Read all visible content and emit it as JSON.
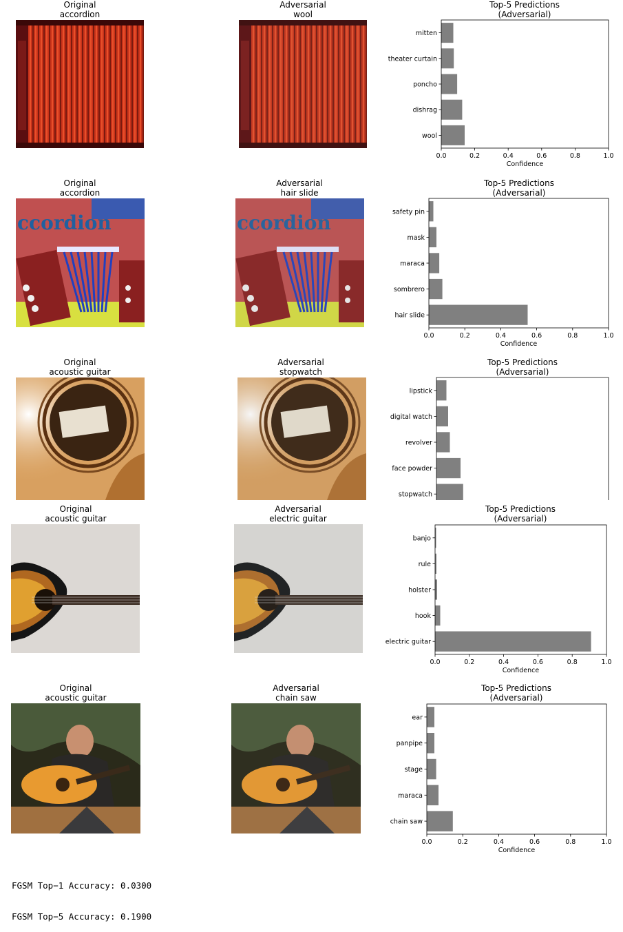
{
  "rows": [
    {
      "original_title": "Original",
      "original_label": "accordion",
      "adv_title": "Adversarial",
      "adv_label": "wool",
      "image_name": "accordion-bellows-image",
      "chart_title_1": "Top-5 Predictions",
      "chart_title_2": "(Adversarial)"
    },
    {
      "original_title": "Original",
      "original_label": "accordion",
      "adv_title": "Adversarial",
      "adv_label": "hair slide",
      "image_name": "accordion-book-cover-image",
      "chart_title_1": "Top-5 Predictions",
      "chart_title_2": "(Adversarial)"
    },
    {
      "original_title": "Original",
      "original_label": "acoustic guitar",
      "adv_title": "Adversarial",
      "adv_label": "stopwatch",
      "image_name": "guitar-soundhole-image",
      "chart_title_1": "Top-5 Predictions",
      "chart_title_2": "(Adversarial)"
    },
    {
      "original_title": "Original",
      "original_label": "acoustic guitar",
      "adv_title": "Adversarial",
      "adv_label": "electric guitar",
      "image_name": "guitar-on-fabric-image",
      "chart_title_1": "Top-5 Predictions",
      "chart_title_2": "(Adversarial)"
    },
    {
      "original_title": "Original",
      "original_label": "acoustic guitar",
      "adv_title": "Adversarial",
      "adv_label": "chain saw",
      "image_name": "man-playing-guitar-image",
      "chart_title_1": "Top-5 Predictions",
      "chart_title_2": "(Adversarial)"
    }
  ],
  "chart_data": [
    {
      "type": "bar",
      "orientation": "horizontal",
      "title": "Top-5 Predictions (Adversarial)",
      "categories": [
        "wool",
        "dishrag",
        "poncho",
        "theater curtain",
        "mitten"
      ],
      "values": [
        0.14,
        0.125,
        0.095,
        0.075,
        0.072
      ],
      "xlabel": "Confidence",
      "xlim": [
        0,
        1.0
      ],
      "xticks": [
        "0.0",
        "0.2",
        "0.4",
        "0.6",
        "0.8",
        "1.0"
      ],
      "bar_color": "#808080",
      "show_xaxis": true
    },
    {
      "type": "bar",
      "orientation": "horizontal",
      "title": "Top-5 Predictions (Adversarial)",
      "categories": [
        "hair slide",
        "sombrero",
        "maraca",
        "mask",
        "safety pin"
      ],
      "values": [
        0.55,
        0.075,
        0.058,
        0.042,
        0.025
      ],
      "xlabel": "Confidence",
      "xlim": [
        0,
        1.0
      ],
      "xticks": [
        "0.0",
        "0.2",
        "0.4",
        "0.6",
        "0.8",
        "1.0"
      ],
      "bar_color": "#808080",
      "show_xaxis": true
    },
    {
      "type": "bar",
      "orientation": "horizontal",
      "title": "Top-5 Predictions (Adversarial)",
      "categories": [
        "stopwatch",
        "face powder",
        "revolver",
        "digital watch",
        "lipstick"
      ],
      "values": [
        0.155,
        0.14,
        0.078,
        0.068,
        0.058
      ],
      "xlabel": "",
      "xlim": [
        0,
        1.0
      ],
      "xticks": [],
      "bar_color": "#808080",
      "show_xaxis": false
    },
    {
      "type": "bar",
      "orientation": "horizontal",
      "title": "Top-5 Predictions (Adversarial)",
      "categories": [
        "electric guitar",
        "hook",
        "holster",
        "rule",
        "banjo"
      ],
      "values": [
        0.91,
        0.03,
        0.012,
        0.008,
        0.006
      ],
      "xlabel": "Confidence",
      "xlim": [
        0,
        1.0
      ],
      "xticks": [
        "0.0",
        "0.2",
        "0.4",
        "0.6",
        "0.8",
        "1.0"
      ],
      "bar_color": "#808080",
      "show_xaxis": true
    },
    {
      "type": "bar",
      "orientation": "horizontal",
      "title": "Top-5 Predictions (Adversarial)",
      "categories": [
        "chain saw",
        "maraca",
        "stage",
        "panpipe",
        "ear"
      ],
      "values": [
        0.145,
        0.065,
        0.052,
        0.042,
        0.042
      ],
      "xlabel": "Confidence",
      "xlim": [
        0,
        1.0
      ],
      "xticks": [
        "0.0",
        "0.2",
        "0.4",
        "0.6",
        "0.8",
        "1.0"
      ],
      "bar_color": "#808080",
      "show_xaxis": true
    }
  ],
  "footer": {
    "top1": "FGSM Top−1 Accuracy: 0.0300",
    "top5": "FGSM Top−5 Accuracy: 0.1900"
  }
}
